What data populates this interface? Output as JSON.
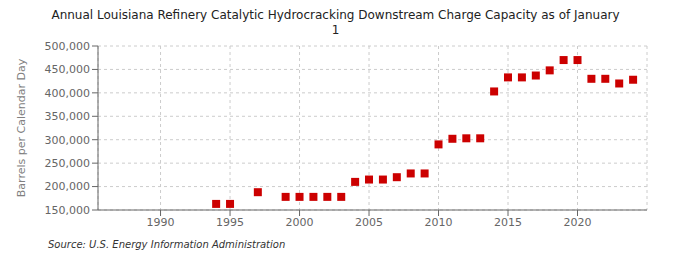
{
  "chart_data": {
    "type": "scatter",
    "title": "Annual Louisiana Refinery Catalytic Hydrocracking Downstream Charge Capacity as of January\n1",
    "ylabel": "Barrels per Calendar Day",
    "source": "Source: U.S. Energy Information Administration",
    "x": [
      1994,
      1995,
      1997,
      1999,
      2000,
      2001,
      2002,
      2003,
      2004,
      2005,
      2006,
      2007,
      2008,
      2009,
      2010,
      2011,
      2012,
      2013,
      2014,
      2015,
      2016,
      2017,
      2018,
      2019,
      2020,
      2021,
      2022,
      2023,
      2024
    ],
    "values": [
      163000,
      163000,
      188000,
      178000,
      178000,
      178000,
      178000,
      178000,
      210000,
      215000,
      215000,
      220000,
      228000,
      228000,
      290000,
      302000,
      303000,
      303000,
      403000,
      433000,
      433000,
      437000,
      448000,
      470000,
      470000,
      430000,
      430000,
      420000,
      428000
    ],
    "color": "#cc0000",
    "marker": "square",
    "xlim": [
      1985.5,
      2025
    ],
    "xticks": [
      1990,
      1995,
      2000,
      2005,
      2010,
      2015,
      2020
    ],
    "ylim": [
      150000,
      500000
    ],
    "yticks": [
      {
        "value": 150000,
        "label": "150,000"
      },
      {
        "value": 200000,
        "label": "200,000"
      },
      {
        "value": 250000,
        "label": "250,000"
      },
      {
        "value": 300000,
        "label": "300,000"
      },
      {
        "value": 350000,
        "label": "350,000"
      },
      {
        "value": 400000,
        "label": "400,000"
      },
      {
        "value": 450000,
        "label": "450,000"
      },
      {
        "value": 500000,
        "label": "500,000"
      }
    ],
    "grid": true
  }
}
